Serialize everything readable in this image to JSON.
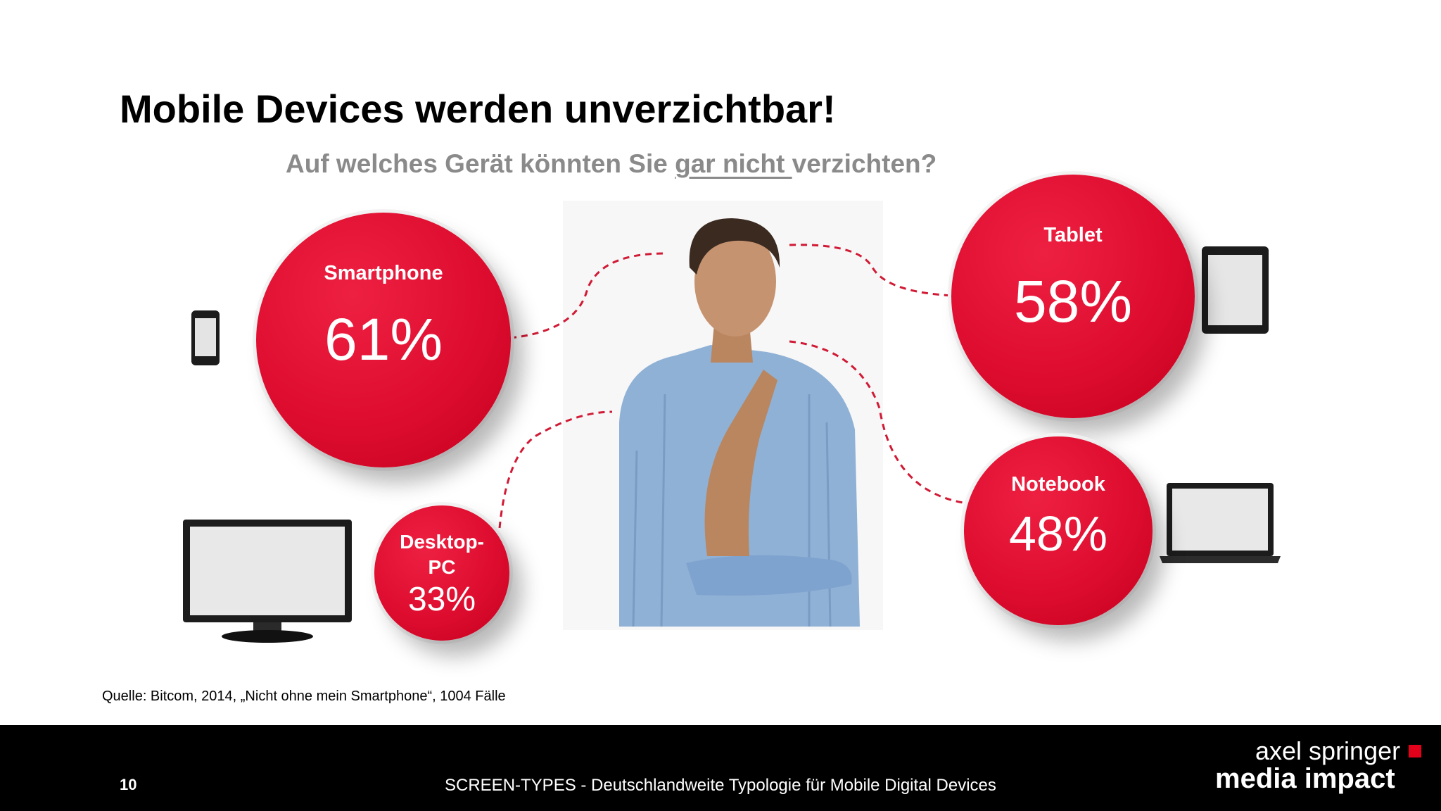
{
  "slide": {
    "title": "Mobile Devices werden unverzichtbar!",
    "question_pre": "Auf welches Gerät könnten Sie ",
    "question_underlined": "gar nicht ",
    "question_post": "verzichten?"
  },
  "devices": [
    {
      "label": "Smartphone",
      "value": "61%",
      "percent": 61,
      "icon": "smartphone-icon"
    },
    {
      "label": "Tablet",
      "value": "58%",
      "percent": 58,
      "icon": "tablet-icon"
    },
    {
      "label": "Notebook",
      "value": "48%",
      "percent": 48,
      "icon": "laptop-icon"
    },
    {
      "label_line1": "Desktop-",
      "label_line2": "PC",
      "value": "33%",
      "percent": 33,
      "icon": "desktop-monitor-icon"
    }
  ],
  "source": "Quelle: Bitcom, 2014, „Nicht ohne mein Smartphone“, 1004 Fälle",
  "footer": {
    "page_number": "10",
    "text": "SCREEN-TYPES - Deutschlandweite Typologie für Mobile Digital Devices",
    "logo_line1": "axel springer",
    "logo_line2": "media impact"
  },
  "colors": {
    "accent_red": "#de0d2f",
    "footer_bg": "#000000",
    "subtitle_gray": "#8a8a8a"
  }
}
